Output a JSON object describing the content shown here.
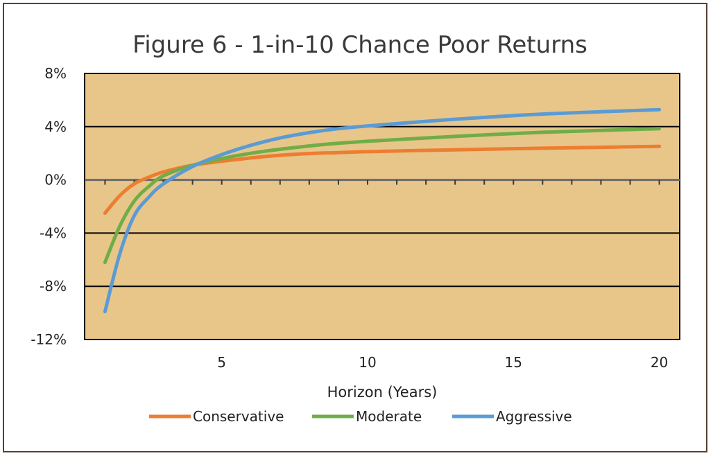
{
  "chart_data": {
    "type": "line",
    "title": "Figure 6 - 1-in-10 Chance Poor Returns",
    "xlabel": "Horizon (Years)",
    "ylabel": "",
    "xlim": [
      0.3,
      20.7
    ],
    "ylim": [
      -12,
      8
    ],
    "yticks": [
      8,
      4,
      0,
      -4,
      -8,
      -12
    ],
    "ytick_labels": [
      "8%",
      "4%",
      "0%",
      "-4%",
      "-8%",
      "-12%"
    ],
    "xticks": [
      5,
      10,
      15,
      20
    ],
    "xtick_labels": [
      "5",
      "10",
      "15",
      "20"
    ],
    "grid": "horizontal",
    "legend_position": "bottom",
    "plot_background": "#e8c68a",
    "x": [
      1,
      1.5,
      2,
      2.5,
      3,
      4,
      5,
      6,
      7,
      8,
      9,
      10,
      12,
      14,
      16,
      18,
      20
    ],
    "series": [
      {
        "name": "Conservative",
        "color": "#ed7d31",
        "values": [
          -2.5,
          -1.2,
          -0.3,
          0.2,
          0.6,
          1.1,
          1.4,
          1.65,
          1.85,
          1.98,
          2.05,
          2.12,
          2.22,
          2.3,
          2.38,
          2.45,
          2.52
        ]
      },
      {
        "name": "Moderate",
        "color": "#70ad47",
        "values": [
          -6.2,
          -3.5,
          -1.6,
          -0.5,
          0.3,
          1.1,
          1.6,
          2.0,
          2.3,
          2.55,
          2.75,
          2.9,
          3.15,
          3.38,
          3.58,
          3.72,
          3.85
        ]
      },
      {
        "name": "Aggressive",
        "color": "#5b9bd5",
        "values": [
          -9.9,
          -5.6,
          -2.7,
          -1.3,
          -0.3,
          1.0,
          1.9,
          2.6,
          3.15,
          3.55,
          3.85,
          4.05,
          4.4,
          4.7,
          4.95,
          5.12,
          5.28
        ]
      }
    ]
  }
}
